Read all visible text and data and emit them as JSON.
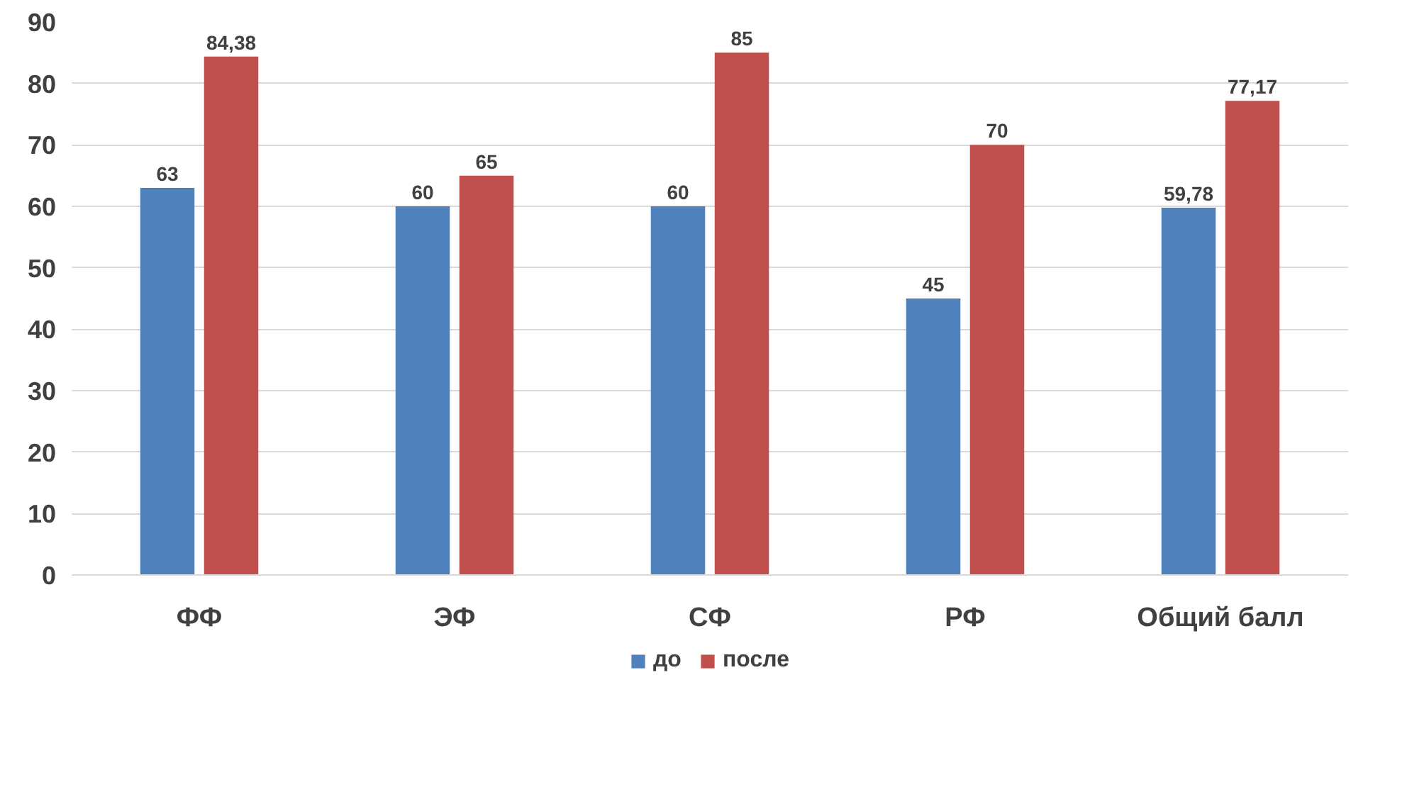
{
  "chart_data": {
    "type": "bar",
    "categories": [
      "ФФ",
      "ЭФ",
      "СФ",
      "РФ",
      "Общий балл"
    ],
    "series": [
      {
        "name": "до",
        "color": "#4f81bd",
        "values": [
          63,
          60,
          60,
          45,
          59.78
        ],
        "value_labels": [
          "63",
          "60",
          "60",
          "45",
          "59,78"
        ]
      },
      {
        "name": "после",
        "color": "#c0504d",
        "values": [
          84.38,
          65,
          85,
          70,
          77.17
        ],
        "value_labels": [
          "84,38",
          "65",
          "85",
          "70",
          "77,17"
        ]
      }
    ],
    "ylim": [
      0,
      90
    ],
    "yticks": [
      0,
      10,
      20,
      30,
      40,
      50,
      60,
      70,
      80,
      90
    ],
    "grid": "y",
    "legend": "bottom"
  }
}
